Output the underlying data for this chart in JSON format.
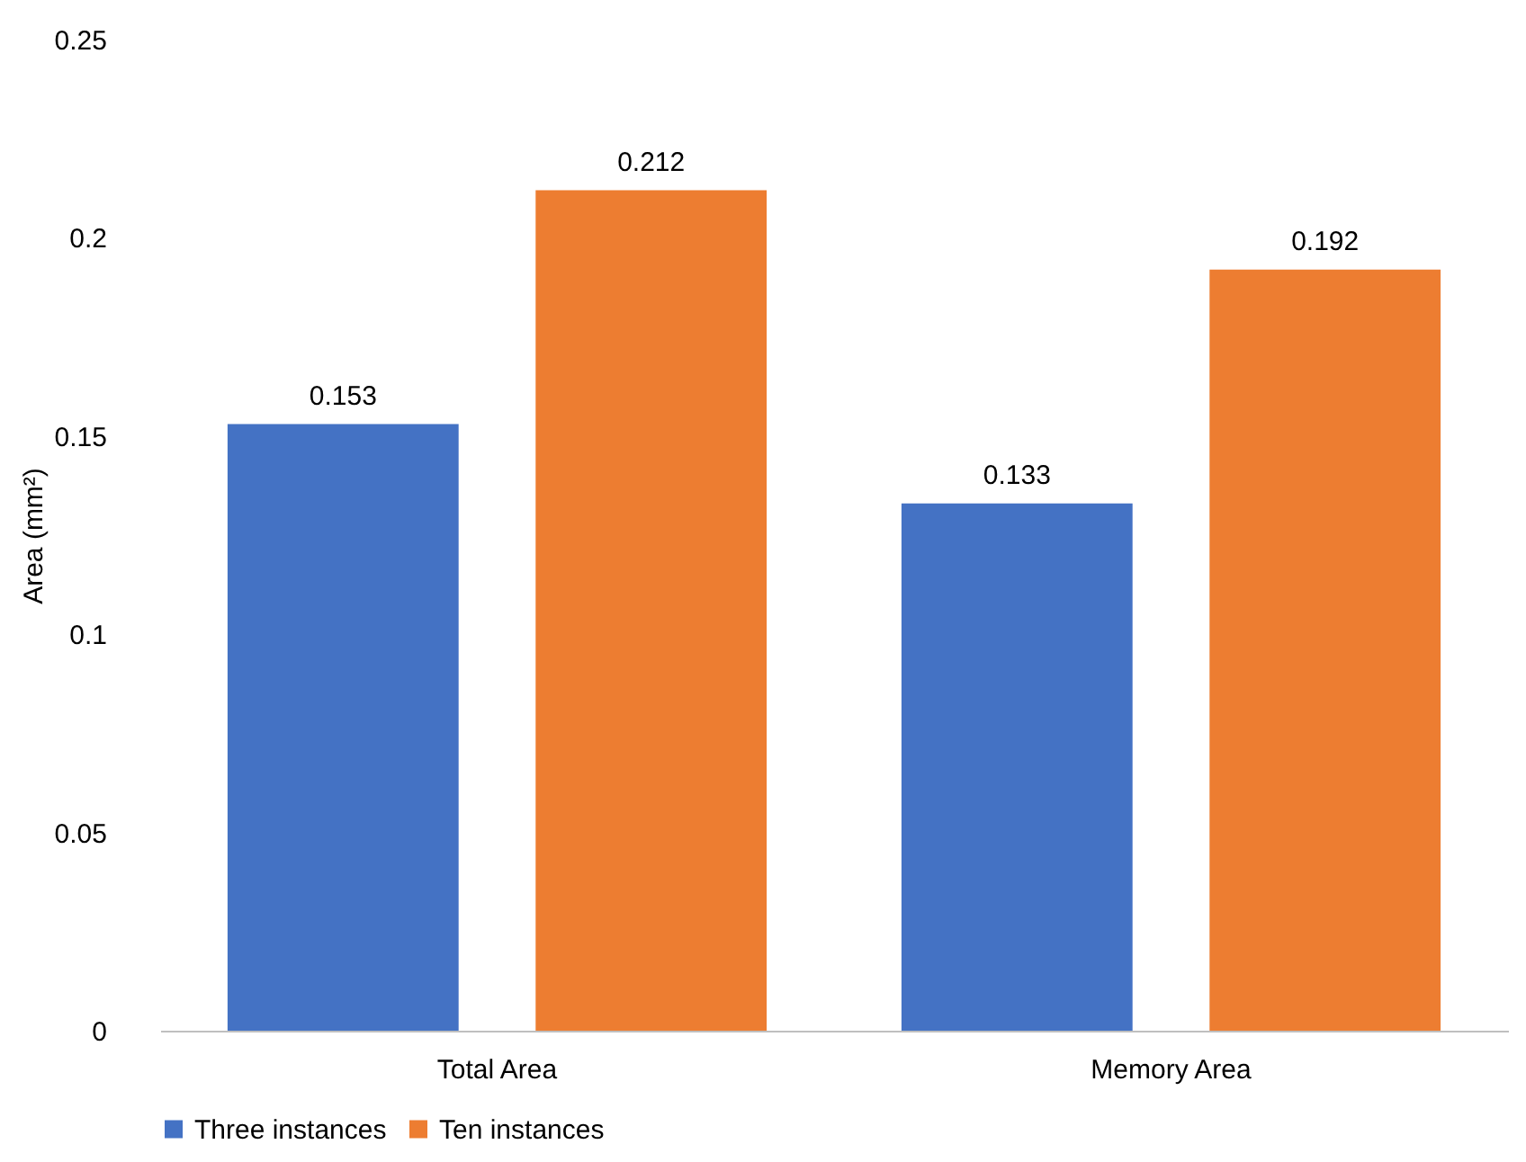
{
  "chart_data": {
    "type": "bar",
    "ylabel": "Area (mm²)",
    "categories": [
      "Total Area",
      "Memory Area"
    ],
    "series": [
      {
        "name": "Three instances",
        "color": "#4472c4",
        "values": [
          0.153,
          0.133
        ]
      },
      {
        "name": "Ten instances",
        "color": "#ed7d31",
        "values": [
          0.212,
          0.192
        ]
      }
    ],
    "ylim": [
      0,
      0.25
    ],
    "yticks": [
      0,
      0.05,
      0.1,
      0.15,
      0.2,
      0.25
    ],
    "data_labels": true,
    "grid": false,
    "legend": "bottom"
  }
}
